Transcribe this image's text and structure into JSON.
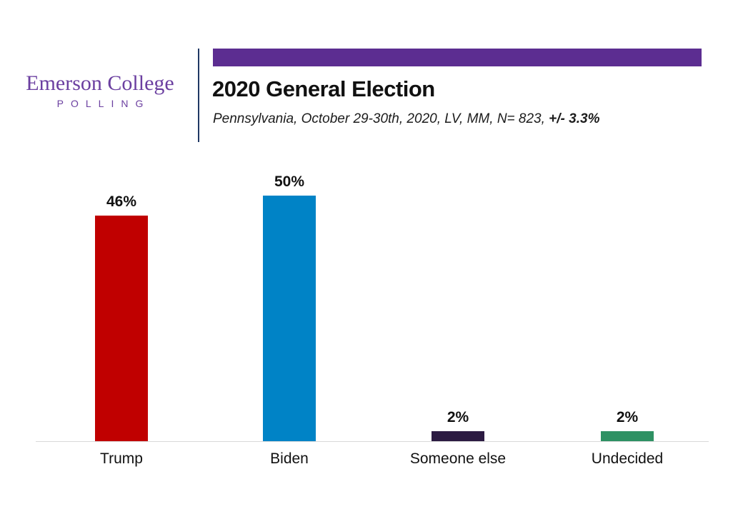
{
  "page": {
    "background": "#FFFFFF"
  },
  "header": {
    "logo": {
      "name": "Emerson College",
      "subtitle": "POLLING",
      "color": "#6B3FA0"
    },
    "banner_color": "#5C2D91",
    "divider_color": "#203864",
    "title": "2020 General Election",
    "subtitle_main": "Pennsylvania, October 29-30th, 2020, LV, MM,  N= 823,",
    "subtitle_moe": "+/- 3.3%"
  },
  "chart_data": {
    "type": "bar",
    "title": "2020 General Election",
    "subtitle": "Pennsylvania, October 29-30th, 2020, LV, MM, N= 823, +/- 3.3%",
    "categories": [
      "Trump",
      "Biden",
      "Someone else",
      "Undecided"
    ],
    "values": [
      46,
      50,
      2,
      2
    ],
    "value_labels": [
      "46%",
      "50%",
      "2%",
      "2%"
    ],
    "series_colors": [
      "#C00000",
      "#0083C6",
      "#2C1B42",
      "#2E9163"
    ],
    "ylim": [
      0,
      55
    ],
    "grid": false,
    "legend": false,
    "value_label_position": "above",
    "axis_line_color": "#D9D9D9",
    "xlabel": "",
    "ylabel": ""
  }
}
